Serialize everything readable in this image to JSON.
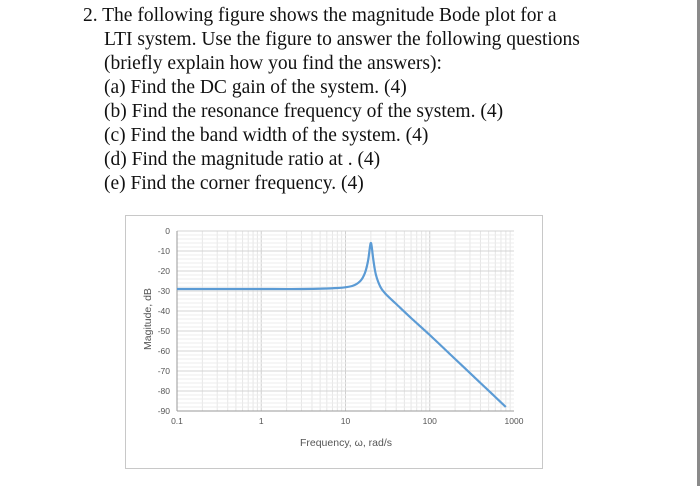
{
  "question": {
    "lines": [
      "2. The following figure shows the magnitude Bode plot for a",
      "LTI system. Use the figure to answer the following questions",
      "(briefly explain how you find the answers):",
      "(a) Find the DC gain of the system. (4)",
      "(b) Find the resonance frequency of the system. (4)",
      "(c) Find the band width of the system. (4)",
      "(d) Find the magnitude ratio at . (4)",
      "(e) Find the corner frequency. (4)"
    ]
  },
  "chart_data": {
    "type": "line",
    "title": "",
    "xlabel": "Frequency, ω, rad/s",
    "ylabel": "Magitude, dB",
    "xscale": "log",
    "xlim": [
      0.1,
      1000
    ],
    "ylim": [
      -90,
      0
    ],
    "x_ticks": [
      "0.1",
      "1",
      "10",
      "100",
      "1000"
    ],
    "y_ticks": [
      "0",
      "-10",
      "-20",
      "-30",
      "-40",
      "-50",
      "-60",
      "-70",
      "-80",
      "-90"
    ],
    "grid": true,
    "legend": "none",
    "series": [
      {
        "color": "#5b9bd5",
        "x": [
          0.1,
          0.5,
          1,
          3,
          8,
          12,
          15,
          17,
          18.5,
          19.5,
          20,
          20.5,
          21.5,
          23,
          26,
          30,
          40,
          60,
          100,
          200,
          400,
          600,
          800
        ],
        "y": [
          -29,
          -29,
          -29,
          -29,
          -28.5,
          -27.5,
          -25,
          -21,
          -15,
          -8,
          -6,
          -8,
          -15,
          -22,
          -28,
          -31.5,
          -36.5,
          -43.5,
          -52,
          -64,
          -76,
          -83,
          -88
        ]
      }
    ]
  }
}
